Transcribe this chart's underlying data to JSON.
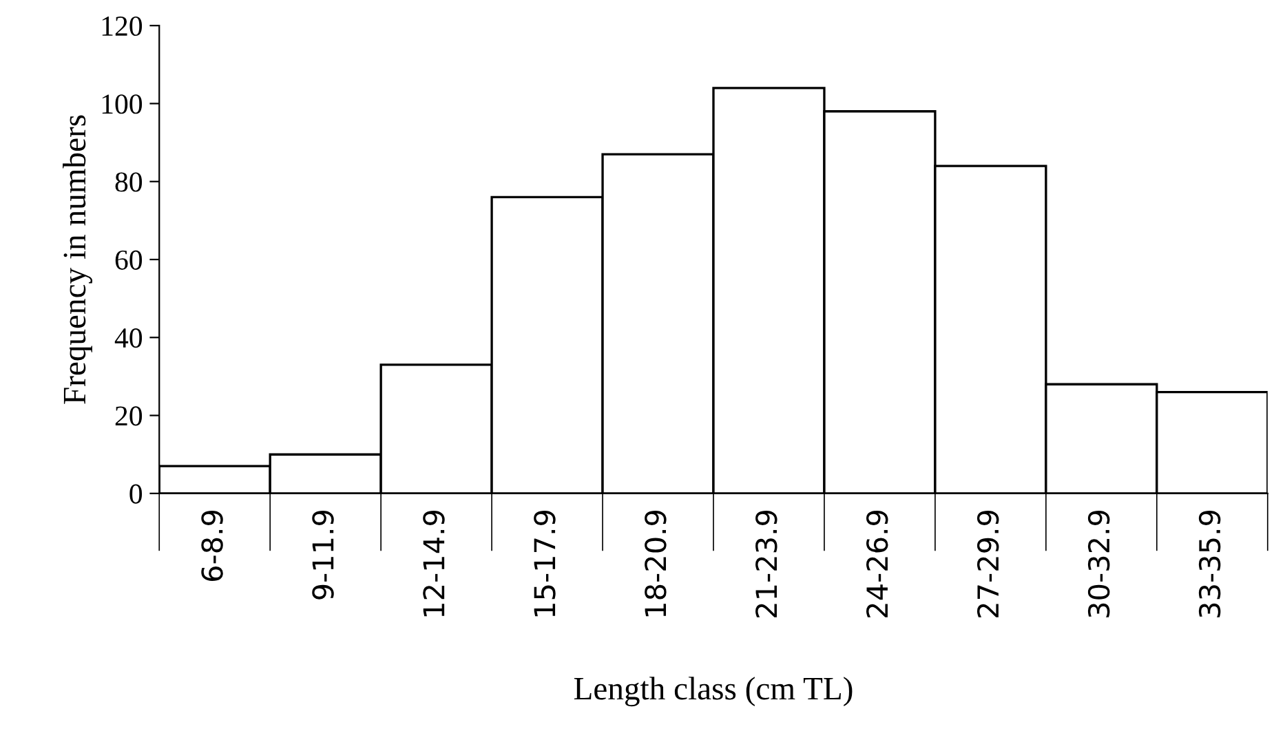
{
  "chart_data": {
    "type": "bar",
    "categories": [
      "6-8.9",
      "9-11.9",
      "12-14.9",
      "15-17.9",
      "18-20.9",
      "21-23.9",
      "24-26.9",
      "27-29.9",
      "30-32.9",
      "33-35.9"
    ],
    "values": [
      7,
      10,
      33,
      76,
      87,
      104,
      98,
      84,
      28,
      26
    ],
    "color": "#ffffff",
    "xlabel": "Length class (cm TL)",
    "ylabel": "Frequency in numbers",
    "ylim": [
      0,
      120
    ],
    "yticks": [
      0,
      20,
      40,
      60,
      80,
      100,
      120
    ],
    "grid": false,
    "legend": false
  }
}
